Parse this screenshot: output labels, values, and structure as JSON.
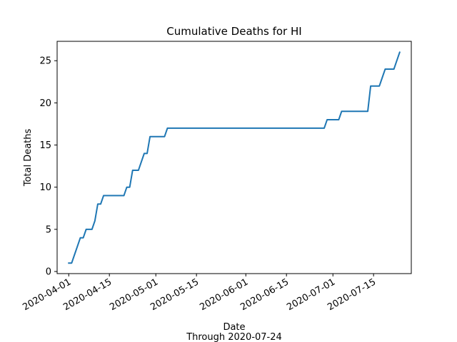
{
  "chart_data": {
    "type": "line",
    "title": "Cumulative Deaths for HI",
    "xlabel": "Date",
    "xlabel_sub": "Through 2020-07-24",
    "ylabel": "Total Deaths",
    "x_tick_labels": [
      "2020-04-01",
      "2020-04-15",
      "2020-05-01",
      "2020-05-15",
      "2020-06-01",
      "2020-06-15",
      "2020-07-01",
      "2020-07-15"
    ],
    "y_ticks": [
      0,
      5,
      10,
      15,
      20,
      25
    ],
    "xlim": [
      "2020-03-28",
      "2020-07-28"
    ],
    "ylim": [
      -0.25,
      27.3
    ],
    "grid": false,
    "color": "#1f77b4",
    "series": [
      {
        "x": [
          "2020-04-01",
          "2020-04-02",
          "2020-04-03",
          "2020-04-04",
          "2020-04-05",
          "2020-04-06",
          "2020-04-07",
          "2020-04-08",
          "2020-04-09",
          "2020-04-10",
          "2020-04-11",
          "2020-04-12",
          "2020-04-13",
          "2020-04-14",
          "2020-04-15",
          "2020-04-16",
          "2020-04-17",
          "2020-04-18",
          "2020-04-19",
          "2020-04-20",
          "2020-04-21",
          "2020-04-22",
          "2020-04-23",
          "2020-04-24",
          "2020-04-25",
          "2020-04-26",
          "2020-04-27",
          "2020-04-28",
          "2020-04-29",
          "2020-04-30",
          "2020-05-01",
          "2020-05-02",
          "2020-05-03",
          "2020-05-04",
          "2020-05-05",
          "2020-06-28",
          "2020-06-29",
          "2020-06-30",
          "2020-07-01",
          "2020-07-02",
          "2020-07-03",
          "2020-07-04",
          "2020-07-05",
          "2020-07-06",
          "2020-07-07",
          "2020-07-08",
          "2020-07-09",
          "2020-07-10",
          "2020-07-11",
          "2020-07-12",
          "2020-07-13",
          "2020-07-14",
          "2020-07-15",
          "2020-07-16",
          "2020-07-17",
          "2020-07-18",
          "2020-07-19",
          "2020-07-20",
          "2020-07-21",
          "2020-07-22",
          "2020-07-23",
          "2020-07-24"
        ],
        "y": [
          1,
          1,
          2,
          3,
          4,
          4,
          5,
          5,
          5,
          6,
          8,
          8,
          9,
          9,
          9,
          9,
          9,
          9,
          9,
          9,
          10,
          10,
          12,
          12,
          12,
          13,
          14,
          14,
          16,
          16,
          16,
          16,
          16,
          16,
          17,
          17,
          18,
          18,
          18,
          18,
          18,
          19,
          19,
          19,
          19,
          19,
          19,
          19,
          19,
          19,
          19,
          22,
          22,
          22,
          22,
          23,
          24,
          24,
          24,
          24,
          25,
          26
        ]
      }
    ]
  }
}
